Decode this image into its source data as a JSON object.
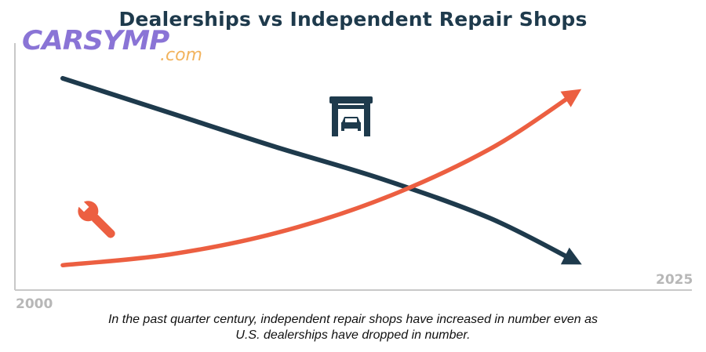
{
  "logo": {
    "main": "CARSYMP",
    "sub": ".com",
    "main_color": "#8a74d6",
    "sub_color": "#f2b35d"
  },
  "caption": {
    "line1": "In the past quarter century, independent repair shops have increased in number even as",
    "line2": "U.S. dealerships have dropped in number."
  },
  "chart_data": {
    "type": "line",
    "title": "Dealerships vs Independent Repair Shops",
    "x_tick_labels": [
      "2000",
      "2025"
    ],
    "xlim": [
      2000,
      2025
    ],
    "grid": false,
    "series": [
      {
        "name": "",
        "icon": "garage-icon",
        "color": "#1e3a4c",
        "trend": "decreasing",
        "x": [
          2000,
          2005,
          2010,
          2015,
          2020,
          2024
        ],
        "y": [
          0.92,
          0.76,
          0.6,
          0.45,
          0.27,
          0.07
        ]
      },
      {
        "name": "",
        "icon": "wrench-icon",
        "color": "#ec5f41",
        "trend": "increasing",
        "x": [
          2000,
          2005,
          2010,
          2015,
          2020,
          2024
        ],
        "y": [
          0.05,
          0.1,
          0.2,
          0.36,
          0.59,
          0.85
        ]
      }
    ],
    "colors": {
      "title": "#1e3a4c",
      "axis": "#c8c8c8",
      "tick_label": "#b7b7b7"
    }
  }
}
